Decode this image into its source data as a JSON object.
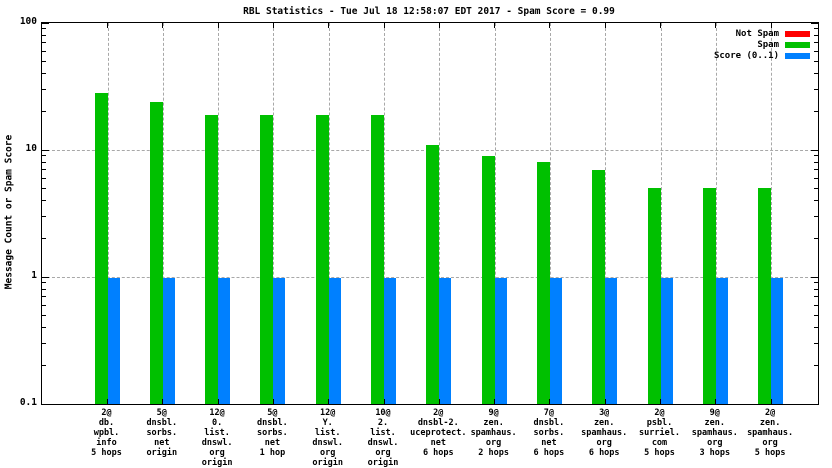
{
  "chart_data": {
    "type": "bar",
    "title": "RBL Statistics - Tue Jul 18 12:58:07 EDT 2017 - Spam Score = 0.99",
    "xlabel": "",
    "ylabel": "Message Count or Spam Score",
    "y_scale": "log",
    "ylim": [
      0.1,
      100
    ],
    "y_ticks": [
      "100",
      "10",
      "1",
      "0.1"
    ],
    "y_tick_values": [
      100,
      10,
      1,
      0.1
    ],
    "grid": true,
    "legend_position": "top-right-inside",
    "background_color": "#ffffff",
    "grid_color": "#a8a8a8",
    "categories": [
      [
        "2@",
        "db.",
        "wpbl.",
        "info",
        "5 hops"
      ],
      [
        "5@",
        "dnsbl.",
        "sorbs.",
        "net",
        "origin"
      ],
      [
        "12@",
        "0.",
        "list.",
        "dnswl.",
        "org",
        "origin"
      ],
      [
        "5@",
        "dnsbl.",
        "sorbs.",
        "net",
        "1 hop"
      ],
      [
        "12@",
        "Y.",
        "list.",
        "dnswl.",
        "org",
        "origin"
      ],
      [
        "10@",
        "2.",
        "list.",
        "dnswl.",
        "org",
        "origin"
      ],
      [
        "2@",
        "dnsbl-2.",
        "uceprotect.",
        "net",
        "6 hops"
      ],
      [
        "9@",
        "zen.",
        "spamhaus.",
        "org",
        "2 hops"
      ],
      [
        "7@",
        "dnsbl.",
        "sorbs.",
        "net",
        "6 hops"
      ],
      [
        "3@",
        "zen.",
        "spamhaus.",
        "org",
        "6 hops"
      ],
      [
        "2@",
        "psbl.",
        "surriel.",
        "com",
        "5 hops"
      ],
      [
        "9@",
        "zen.",
        "spamhaus.",
        "org",
        "3 hops"
      ],
      [
        "2@",
        "zen.",
        "spamhaus.",
        "org",
        "5 hops"
      ]
    ],
    "series": [
      {
        "name": "Not Spam",
        "color": "#ff0000",
        "values": [
          0,
          0,
          0,
          0,
          0,
          0,
          0,
          0,
          0,
          0,
          0,
          0,
          0
        ]
      },
      {
        "name": "Spam",
        "color": "#00c000",
        "values": [
          28,
          24,
          19,
          19,
          19,
          19,
          11,
          9,
          8,
          7,
          5,
          5,
          5
        ]
      },
      {
        "name": "Score (0..1)",
        "color": "#0080ff",
        "values": [
          0.99,
          0.99,
          0.99,
          0.99,
          0.99,
          0.99,
          0.99,
          0.99,
          0.99,
          0.99,
          0.99,
          0.99,
          0.99
        ]
      }
    ]
  }
}
